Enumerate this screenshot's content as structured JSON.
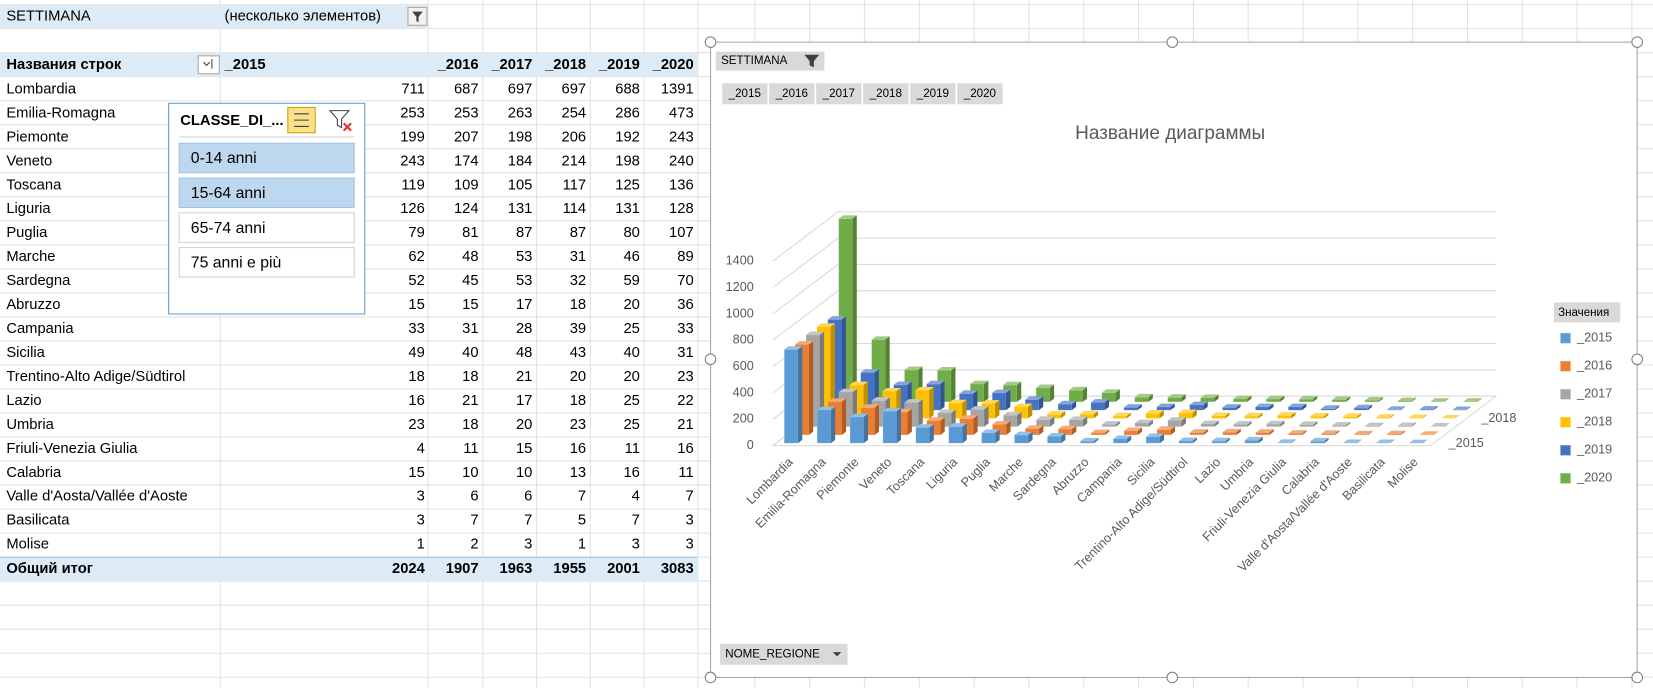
{
  "filter": {
    "field": "SETTIMANA",
    "value": "(несколько элементов)"
  },
  "table": {
    "row_header": "Названия строк",
    "total_label": "Общий итог",
    "totals": [
      2024,
      1907,
      1963,
      1955,
      2001,
      3083
    ]
  },
  "slicer": {
    "title": "CLASSE_DI_...",
    "items": [
      {
        "label": "0-14 anni",
        "selected": true
      },
      {
        "label": "15-64 anni",
        "selected": true
      },
      {
        "label": "65-74 anni",
        "selected": false
      },
      {
        "label": "75 anni e più",
        "selected": false
      }
    ]
  },
  "chart_data": {
    "type": "bar3d",
    "title": "Название диаграммы",
    "axis_button": "NOME_REGIONE",
    "legend_title": "Значения",
    "legend": "right",
    "grid": true,
    "categories": [
      "Lombardia",
      "Emilia-Romagna",
      "Piemonte",
      "Veneto",
      "Toscana",
      "Liguria",
      "Puglia",
      "Marche",
      "Sardegna",
      "Abruzzo",
      "Campania",
      "Sicilia",
      "Trentino-Alto Adige/Südtirol",
      "Lazio",
      "Umbria",
      "Friuli-Venezia Giulia",
      "Calabria",
      "Valle d'Aosta/Vallée d'Aoste",
      "Basilicata",
      "Molise"
    ],
    "series": [
      {
        "name": "_2015",
        "color": "#5b9bd5",
        "values": [
          711,
          253,
          199,
          243,
          119,
          126,
          79,
          62,
          52,
          15,
          33,
          49,
          18,
          16,
          23,
          4,
          15,
          3,
          3,
          1
        ]
      },
      {
        "name": "_2016",
        "color": "#ed7d31",
        "values": [
          687,
          253,
          207,
          174,
          109,
          124,
          81,
          48,
          45,
          15,
          31,
          40,
          18,
          21,
          18,
          11,
          10,
          6,
          7,
          2
        ]
      },
      {
        "name": "_2017",
        "color": "#a5a5a5",
        "values": [
          697,
          263,
          198,
          184,
          105,
          131,
          87,
          53,
          53,
          17,
          28,
          48,
          21,
          17,
          20,
          15,
          10,
          6,
          7,
          3
        ]
      },
      {
        "name": "_2018",
        "color": "#ffc000",
        "values": [
          697,
          254,
          206,
          214,
          117,
          114,
          87,
          31,
          32,
          18,
          39,
          43,
          20,
          18,
          23,
          16,
          13,
          7,
          5,
          1
        ]
      },
      {
        "name": "_2019",
        "color": "#4472c4",
        "values": [
          688,
          286,
          192,
          198,
          125,
          131,
          80,
          46,
          59,
          20,
          25,
          40,
          20,
          25,
          25,
          11,
          16,
          4,
          7,
          3
        ]
      },
      {
        "name": "_2020",
        "color": "#70ad47",
        "values": [
          1391,
          473,
          243,
          240,
          136,
          128,
          107,
          89,
          70,
          36,
          33,
          31,
          23,
          22,
          21,
          16,
          11,
          7,
          3,
          3
        ]
      }
    ],
    "ylim": [
      0,
      1400
    ],
    "yticks": [
      0,
      200,
      400,
      600,
      800,
      1000,
      1200,
      1400
    ]
  }
}
